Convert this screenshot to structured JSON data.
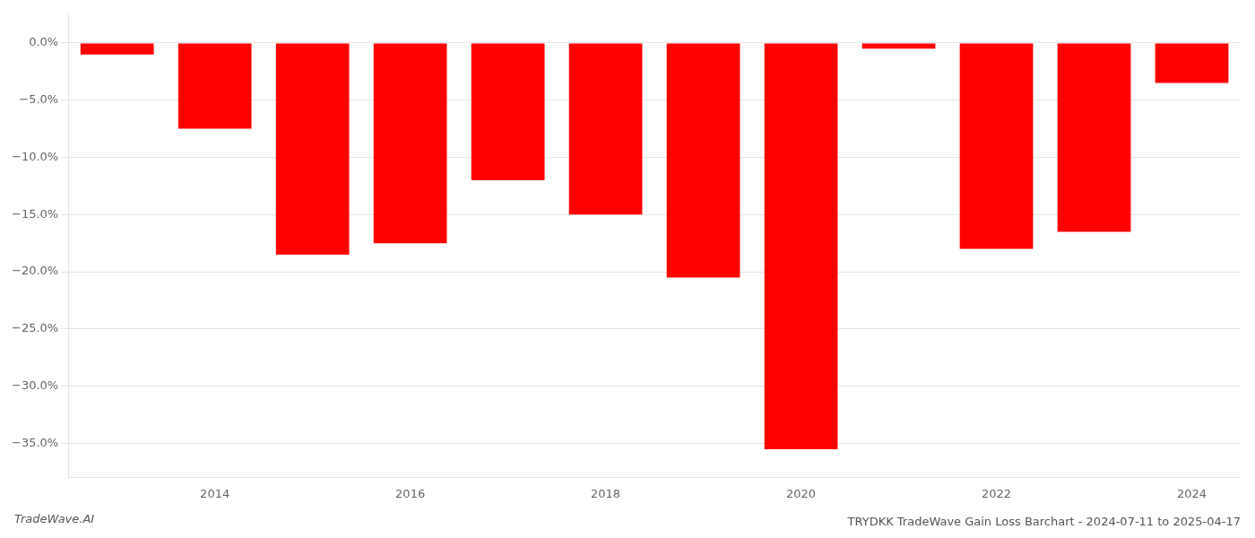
{
  "chart_data": {
    "type": "bar",
    "title": "TRYDKK TradeWave Gain Loss Barchart - 2024-07-11 to 2025-04-17",
    "annotations": [
      {
        "text": "TradeWave.AI"
      }
    ],
    "categories": [
      null,
      "2014",
      null,
      "2016",
      null,
      "2018",
      null,
      "2020",
      null,
      "2022",
      null,
      "2024"
    ],
    "values": [
      -1.0,
      -7.5,
      -18.5,
      -17.5,
      -12.0,
      -15.0,
      -20.5,
      -35.5,
      -0.5,
      -18.0,
      -16.5,
      -3.5
    ],
    "color": "#ff0000",
    "ylim": [
      -38,
      2.5
    ],
    "yticks": [
      {
        "value": 0.0,
        "label": "0.0%"
      },
      {
        "value": -5.0,
        "label": "−5.0%"
      },
      {
        "value": -10.0,
        "label": "−10.0%"
      },
      {
        "value": -15.0,
        "label": "−15.0%"
      },
      {
        "value": -20.0,
        "label": "−20.0%"
      },
      {
        "value": -25.0,
        "label": "−25.0%"
      },
      {
        "value": -30.0,
        "label": "−30.0%"
      },
      {
        "value": -35.0,
        "label": "−35.0%"
      }
    ],
    "grid": true
  }
}
